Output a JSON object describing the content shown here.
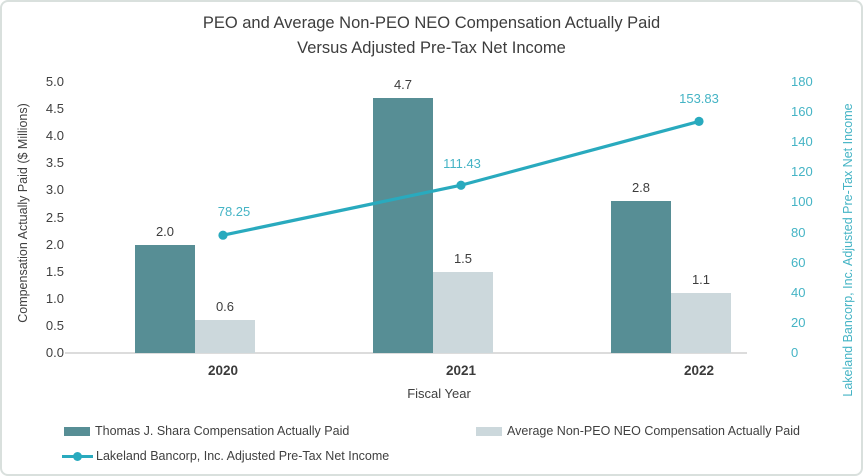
{
  "title": {
    "line1": "PEO and Average Non-PEO NEO Compensation Actually Paid",
    "line2": "Versus Adjusted Pre-Tax Net Income"
  },
  "chart_data": {
    "type": "combo-bar-line",
    "categories": [
      "2020",
      "2021",
      "2022"
    ],
    "series": [
      {
        "name": "Thomas J. Shara Compensation Actually Paid",
        "type": "bar",
        "axis": "left",
        "values": [
          2.0,
          4.7,
          2.8
        ],
        "value_labels": [
          "2.0",
          "4.7",
          "2.8"
        ],
        "color": "#578e95"
      },
      {
        "name": "Average Non-PEO NEO Compensation Actually Paid",
        "type": "bar",
        "axis": "left",
        "values": [
          0.6,
          1.5,
          1.1
        ],
        "value_labels": [
          "0.6",
          "1.5",
          "1.1"
        ],
        "color": "#ccd8dc"
      },
      {
        "name": "Lakeland Bancorp, Inc. Adjusted Pre-Tax Net Income",
        "type": "line",
        "axis": "right",
        "values": [
          78.25,
          111.43,
          153.83
        ],
        "value_labels": [
          "78.25",
          "111.43",
          "153.83"
        ],
        "color": "#29aabe",
        "label_color": "#45b4c5"
      }
    ],
    "xlabel": "Fiscal Year",
    "left_axis": {
      "title": "Compensation Actually Paid ($ Millions)",
      "min": 0.0,
      "max": 5.0,
      "tick_labels": [
        "0.0",
        "0.5",
        "1.0",
        "1.5",
        "2.0",
        "2.5",
        "3.0",
        "3.5",
        "4.0",
        "4.5",
        "5.0"
      ]
    },
    "right_axis": {
      "title": "Lakeland Bancorp, Inc. Adjusted Pre-Tax Net Income",
      "min": 0,
      "max": 180,
      "tick_labels": [
        "0",
        "20",
        "40",
        "60",
        "80",
        "100",
        "120",
        "140",
        "160",
        "180"
      ]
    },
    "grid": false,
    "legend_position": "bottom"
  },
  "colors": {
    "bar_primary": "#578e95",
    "bar_secondary": "#ccd8dc",
    "line": "#29aabe",
    "line_label": "#45b4c5",
    "text": "#404040",
    "axis_line": "#dcdcdc",
    "border": "#d9e0dd"
  }
}
